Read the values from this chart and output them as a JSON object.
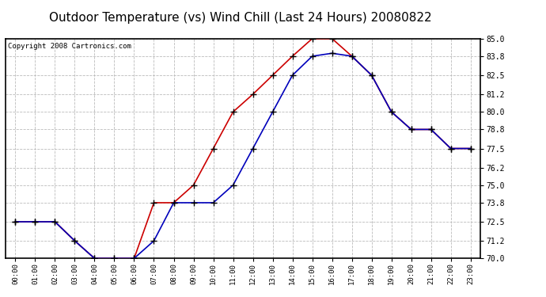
{
  "title": "Outdoor Temperature (vs) Wind Chill (Last 24 Hours) 20080822",
  "copyright": "Copyright 2008 Cartronics.com",
  "hours": [
    "00:00",
    "01:00",
    "02:00",
    "03:00",
    "04:00",
    "05:00",
    "06:00",
    "07:00",
    "08:00",
    "09:00",
    "10:00",
    "11:00",
    "12:00",
    "13:00",
    "14:00",
    "15:00",
    "16:00",
    "17:00",
    "18:00",
    "19:00",
    "20:00",
    "21:00",
    "22:00",
    "23:00"
  ],
  "outdoor_temp": [
    72.5,
    72.5,
    72.5,
    71.2,
    70.0,
    70.0,
    70.0,
    73.8,
    73.8,
    75.0,
    77.5,
    80.0,
    81.2,
    82.5,
    83.8,
    85.0,
    85.0,
    83.8,
    82.5,
    80.0,
    78.8,
    78.8,
    77.5,
    77.5
  ],
  "wind_chill": [
    72.5,
    72.5,
    72.5,
    71.2,
    70.0,
    70.0,
    70.0,
    71.2,
    73.8,
    73.8,
    73.8,
    75.0,
    77.5,
    80.0,
    82.5,
    83.8,
    84.0,
    83.8,
    82.5,
    80.0,
    78.8,
    78.8,
    77.5,
    77.5
  ],
  "temp_color": "#cc0000",
  "chill_color": "#0000bb",
  "ylim_min": 70.0,
  "ylim_max": 85.0,
  "yticks": [
    70.0,
    71.2,
    72.5,
    73.8,
    75.0,
    76.2,
    77.5,
    78.8,
    80.0,
    81.2,
    82.5,
    83.8,
    85.0
  ],
  "bg_color": "#ffffff",
  "grid_color": "#bbbbbb",
  "title_fontsize": 11,
  "copyright_fontsize": 6.5,
  "marker": "+",
  "marker_size": 6,
  "marker_color": "#000000",
  "line_width": 1.2
}
